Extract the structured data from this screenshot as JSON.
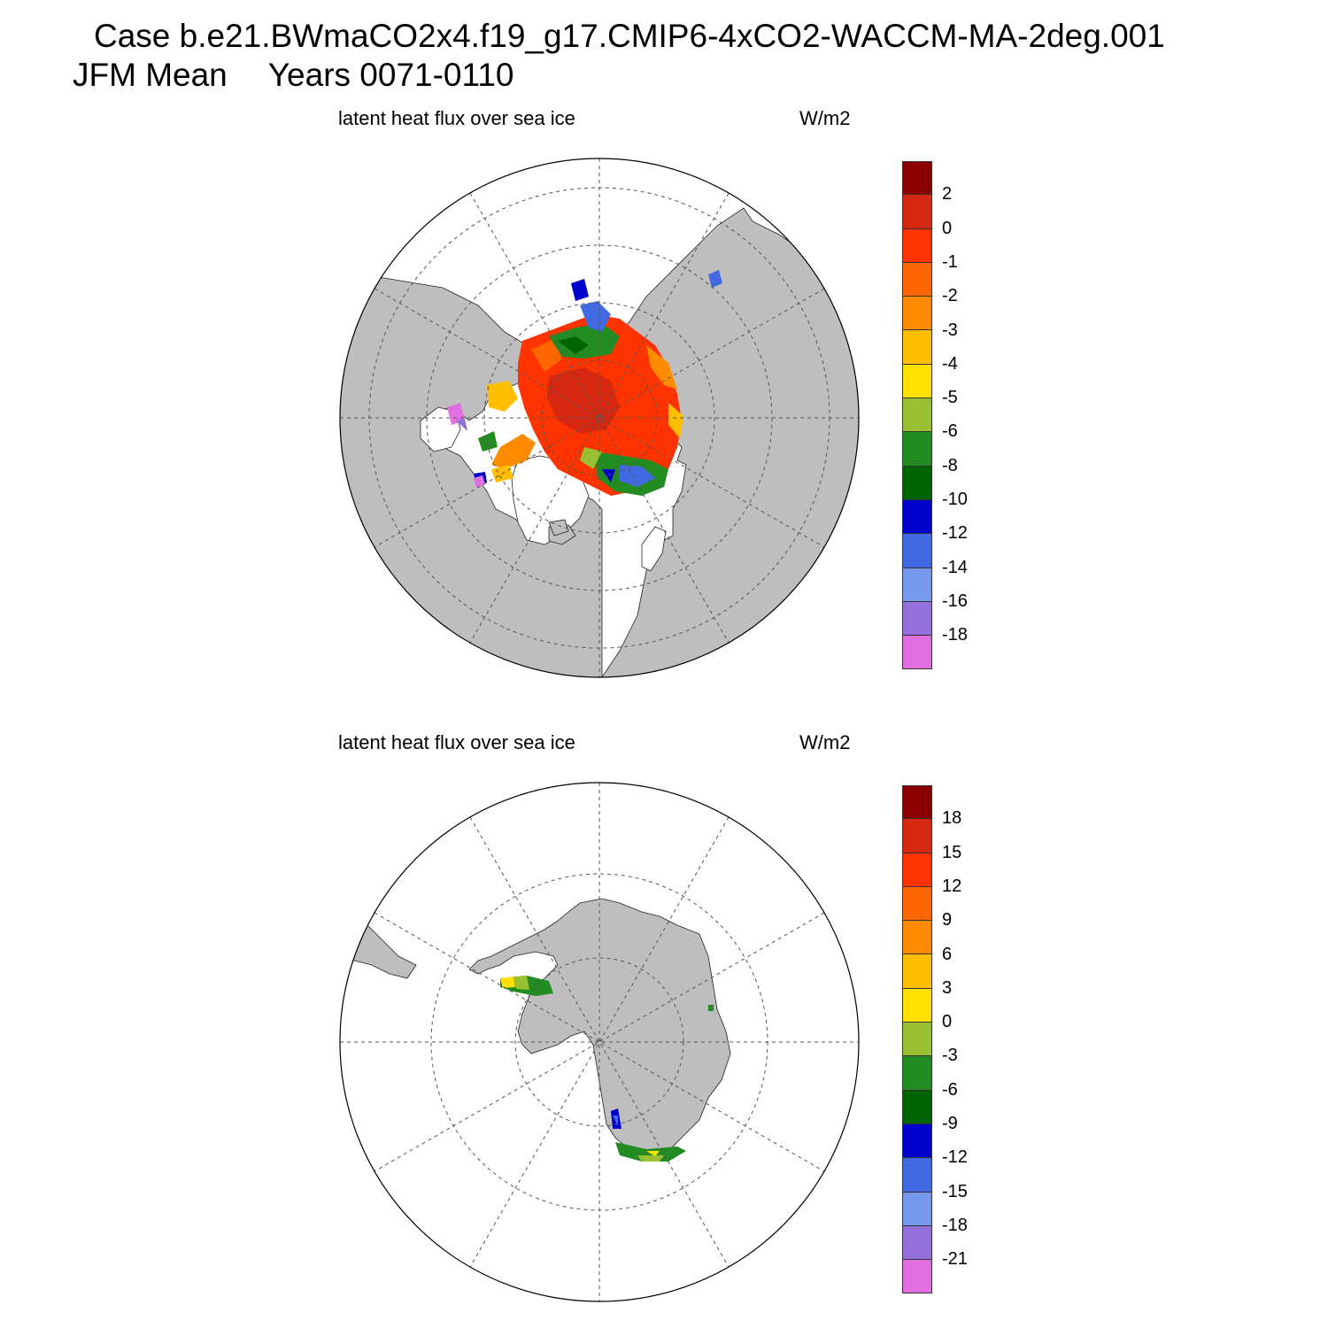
{
  "header": {
    "case_line": "Case b.e21.BWmaCO2x4.f19_g17.CMIP6-4xCO2-WACCM-MA-2deg.001",
    "season": "JFM Mean",
    "years": "Years 0071-0110"
  },
  "panels": [
    {
      "name": "north",
      "title": "latent heat flux over sea ice",
      "units": "W/m2",
      "colorbar": {
        "labels": [
          "2",
          "0",
          "-1",
          "-2",
          "-3",
          "-4",
          "-5",
          "-6",
          "-8",
          "-10",
          "-12",
          "-14",
          "-16",
          "-18"
        ]
      }
    },
    {
      "name": "south",
      "title": "latent heat flux over sea ice",
      "units": "W/m2",
      "colorbar": {
        "labels": [
          "18",
          "15",
          "12",
          "9",
          "6",
          "3",
          "0",
          "-3",
          "-6",
          "-9",
          "-12",
          "-15",
          "-18",
          "-21"
        ]
      }
    }
  ],
  "colors": {
    "palette": [
      "#8b0000",
      "#d62710",
      "#ff3300",
      "#ff6600",
      "#ff8c00",
      "#ffbf00",
      "#ffe000",
      "#99bf33",
      "#228b22",
      "#006400",
      "#0000cd",
      "#4169e1",
      "#7799ee",
      "#9370db",
      "#e070e0"
    ],
    "land": "#bebebe",
    "ocean": "#ffffff"
  }
}
